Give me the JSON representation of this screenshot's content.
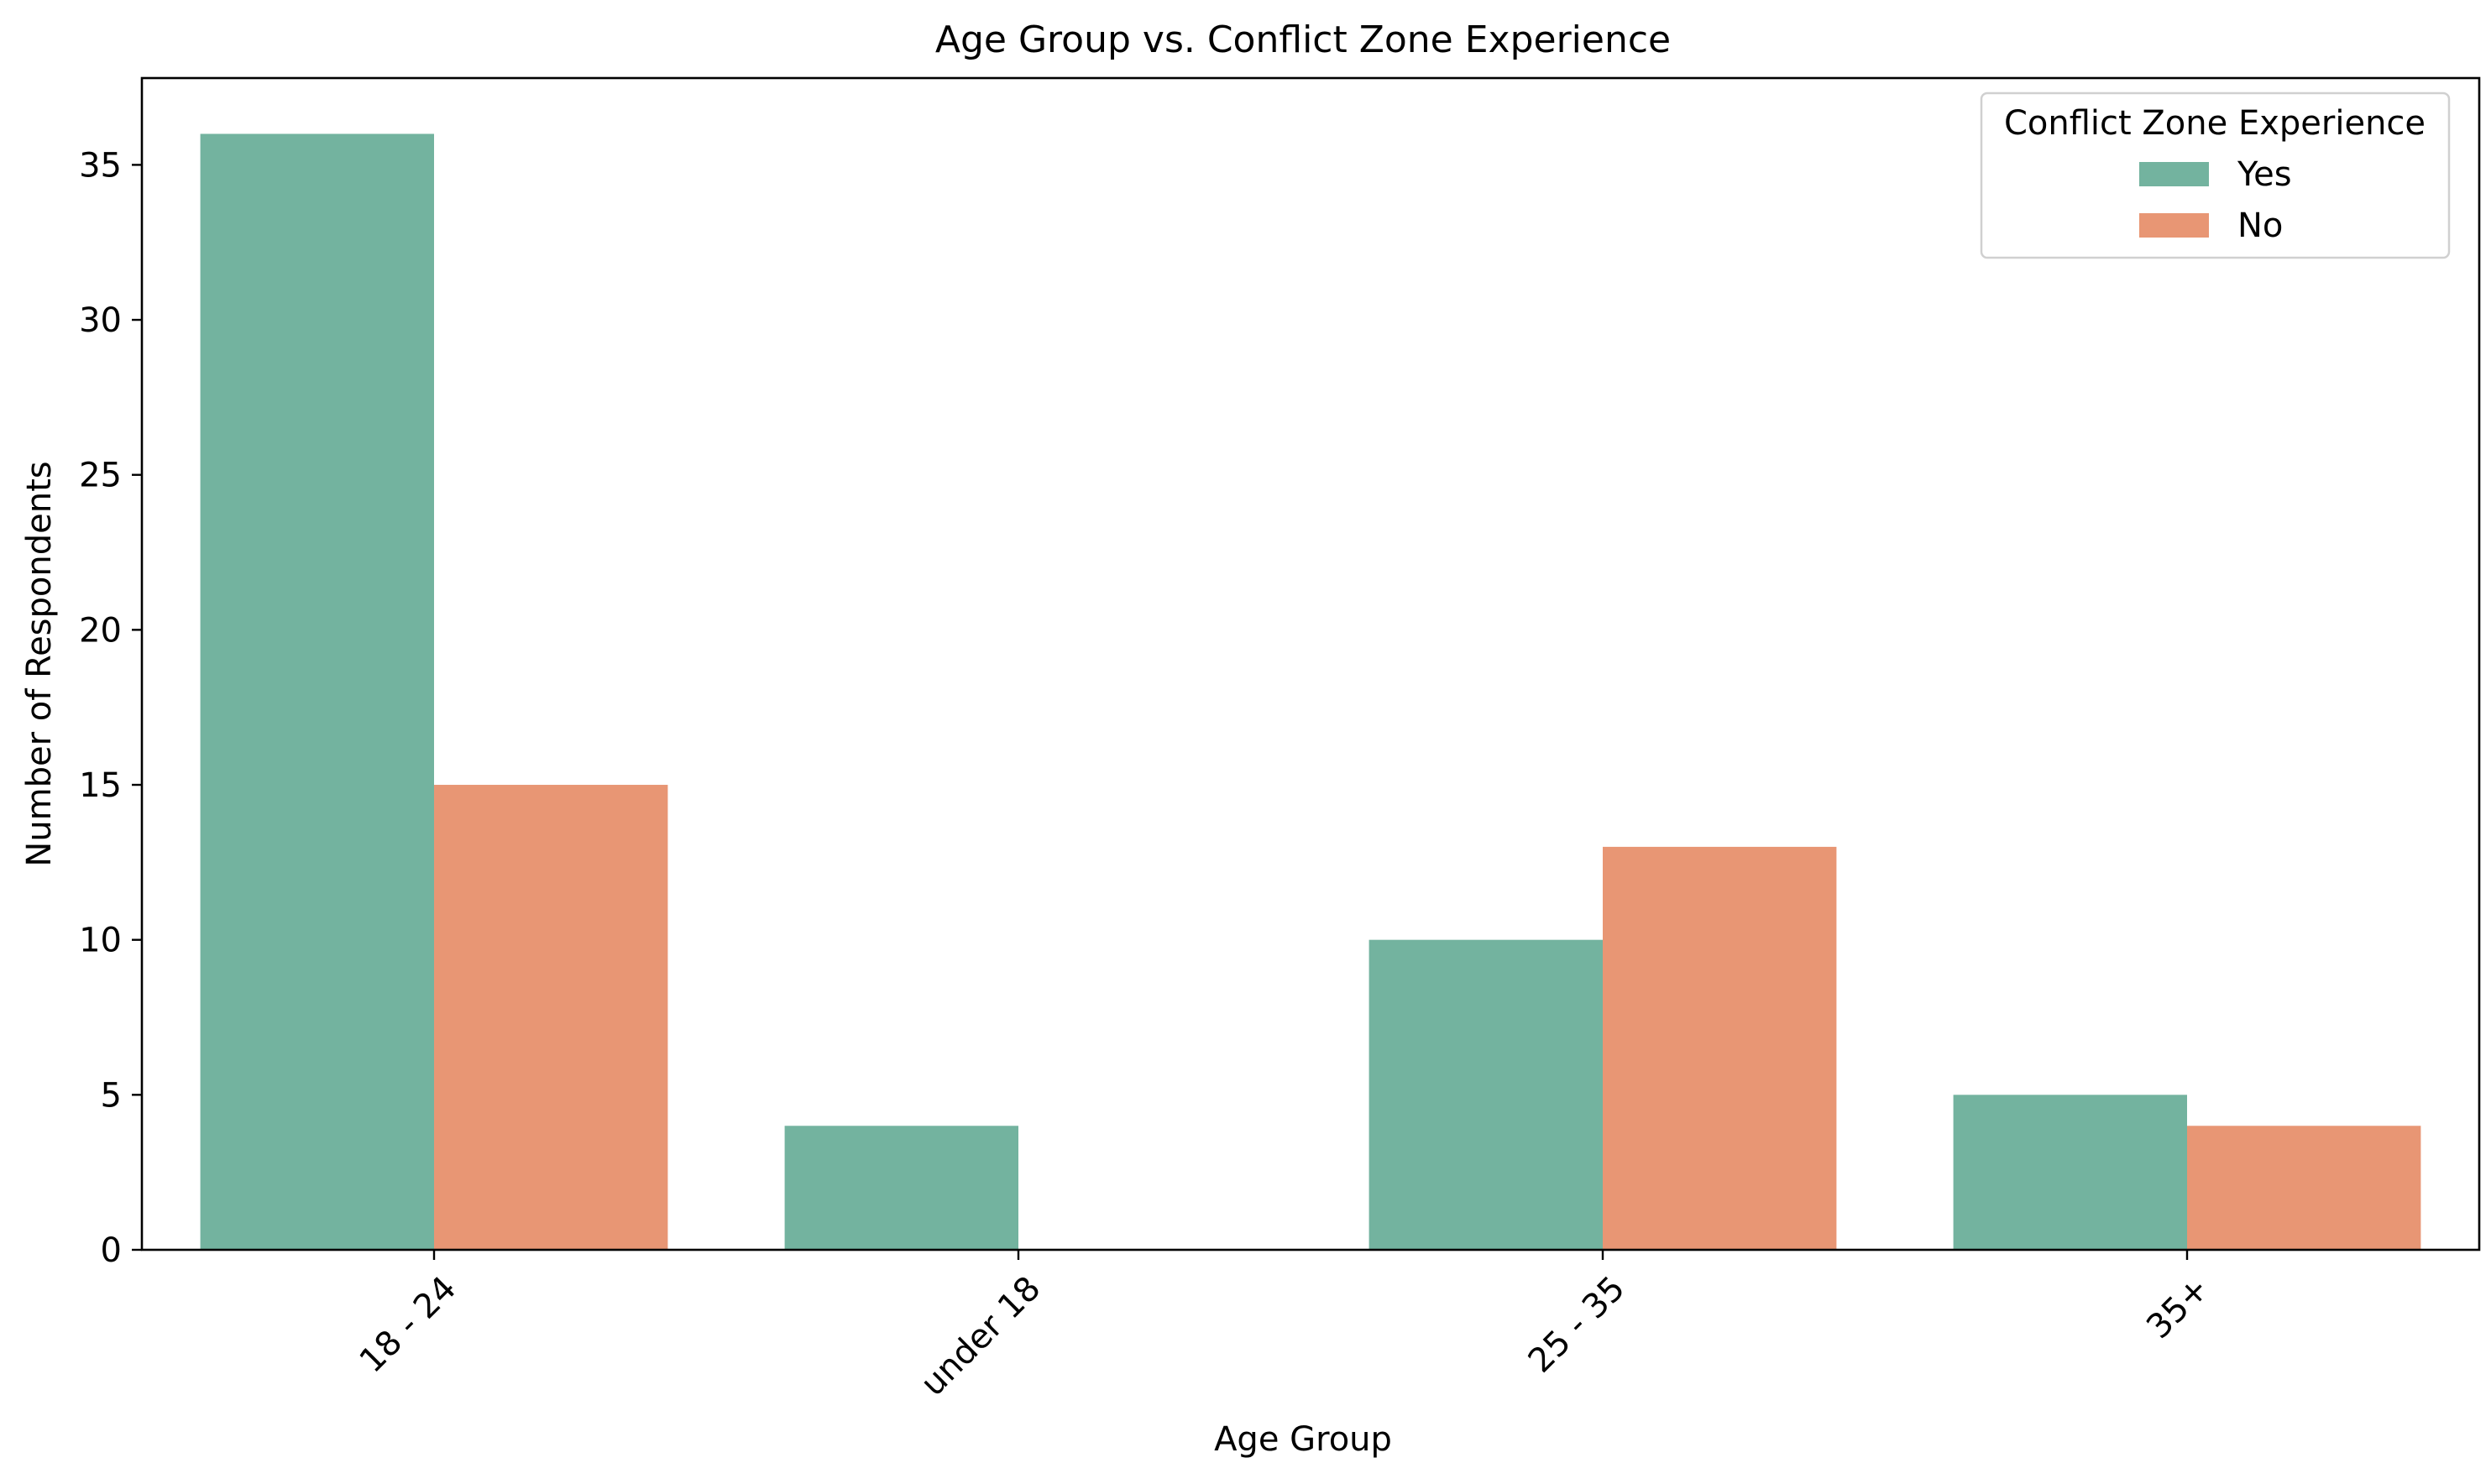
{
  "chart_data": {
    "type": "bar",
    "title": "Age Group vs. Conflict Zone Experience",
    "xlabel": "Age Group",
    "ylabel": "Number of Respondents",
    "categories": [
      "18 - 24",
      "under 18",
      "25 - 35",
      "35+"
    ],
    "series": [
      {
        "name": "Yes",
        "values": [
          36,
          4,
          10,
          5
        ],
        "color": "#73b39f"
      },
      {
        "name": "No",
        "values": [
          15,
          0,
          13,
          4
        ],
        "color": "#e89674"
      }
    ],
    "ylim": [
      0,
      37.8
    ],
    "yticks": [
      0,
      5,
      10,
      15,
      20,
      25,
      30,
      35
    ],
    "xtick_rotation_deg": 45,
    "grid": false,
    "legend": {
      "title": "Conflict Zone Experience",
      "placement": "top-right"
    }
  }
}
